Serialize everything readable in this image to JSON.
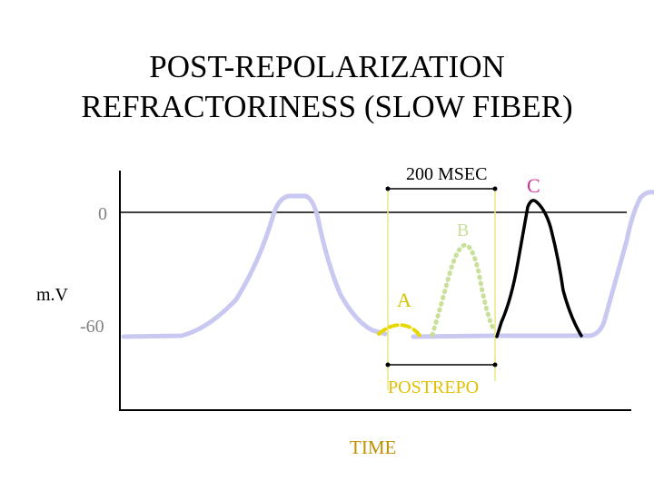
{
  "title": {
    "line1": "POST-REPOLARIZATION",
    "line2": "REFRACTORINESS (SLOW FIBER)"
  },
  "labels": {
    "zero": "0",
    "mv": "m.V",
    "neg60": "-60",
    "msec": "200 MSEC",
    "c": "C",
    "b": "B",
    "a": "A",
    "postrepo": "POSTREPO",
    "time": "TIME"
  },
  "colors": {
    "background": "#ffffff",
    "axis": "#000000",
    "base_trace": "#c8c8f0",
    "trace_a": "#e8d800",
    "trace_b": "#c8e098",
    "trace_c": "#000000",
    "interval_guides": "#e8e880",
    "label_c": "#cc3399"
  }
}
